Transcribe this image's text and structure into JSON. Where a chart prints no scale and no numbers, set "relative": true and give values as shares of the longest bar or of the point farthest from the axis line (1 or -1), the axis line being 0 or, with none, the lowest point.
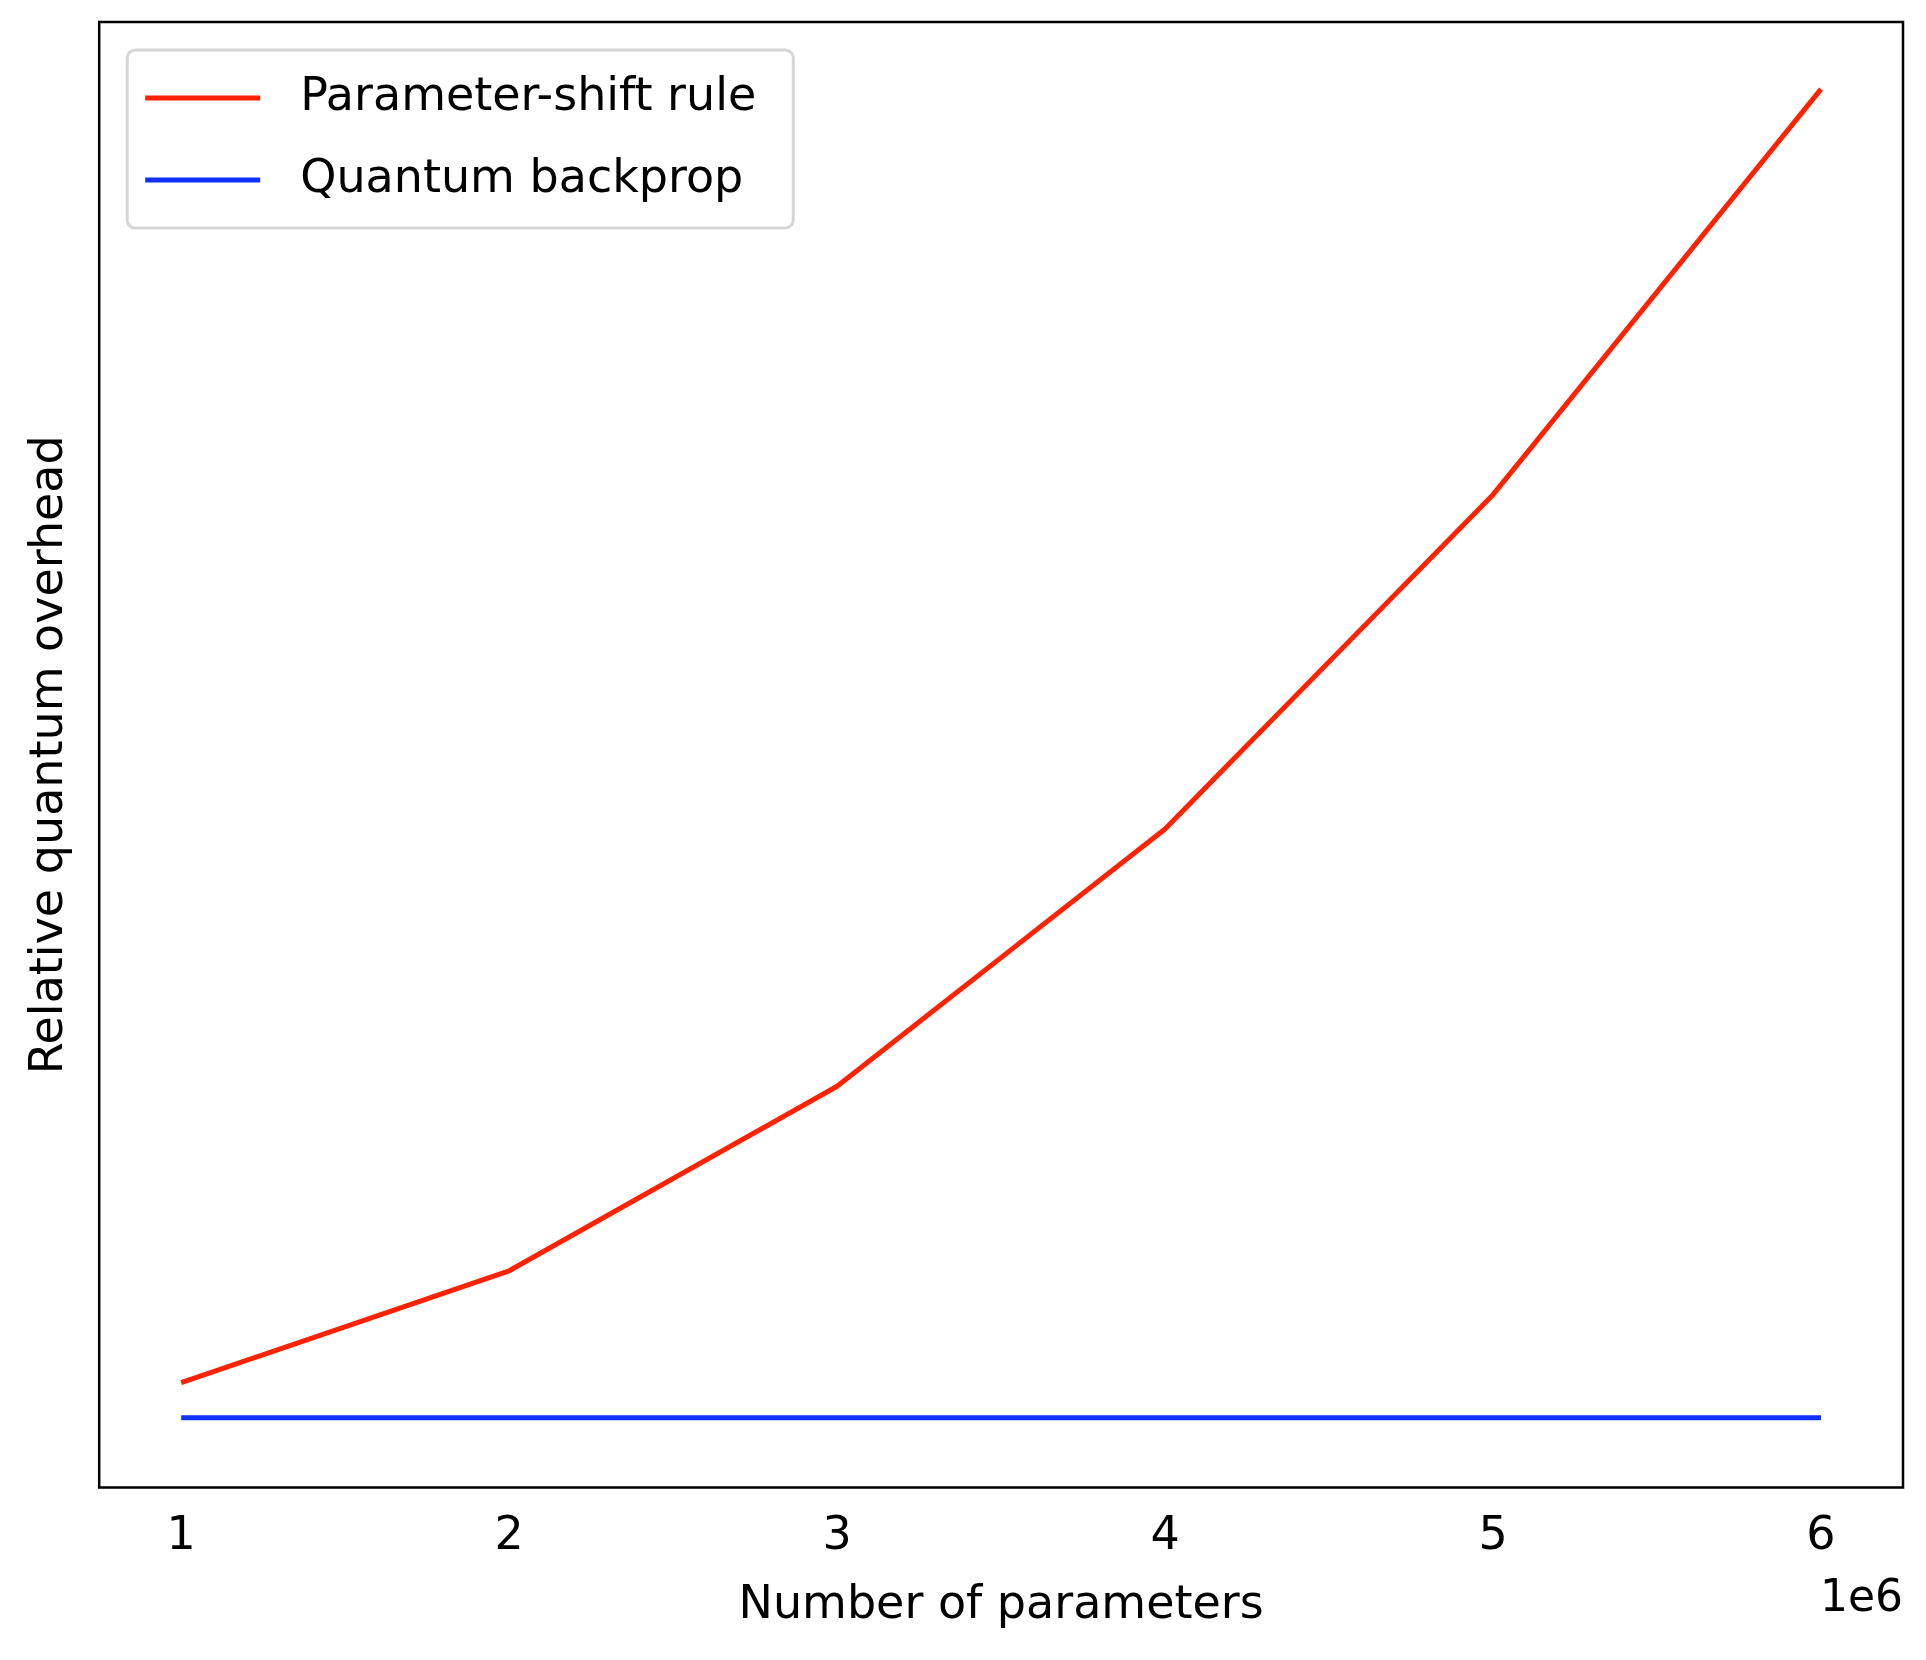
{
  "chart_data": {
    "type": "line",
    "relative": true,
    "xlabel": "Number of parameters",
    "ylabel": "Relative quantum overhead",
    "x": [
      1,
      2,
      3,
      4,
      5,
      6
    ],
    "xlim": [
      0.75,
      6.25
    ],
    "xticks": [
      1,
      2,
      3,
      4,
      5,
      6
    ],
    "series": [
      {
        "name": "Parameter-shift rule",
        "color": "#ff2200",
        "values": [
          0.075,
          0.155,
          0.287,
          0.471,
          0.71,
          1
        ]
      },
      {
        "name": "Quantum backprop",
        "color": "#1030ff",
        "values": [
          0.05,
          0.05,
          0.05,
          0.05,
          0.05,
          0.05
        ]
      }
    ],
    "legend": "top left",
    "annotations": [
      "1e6"
    ]
  }
}
